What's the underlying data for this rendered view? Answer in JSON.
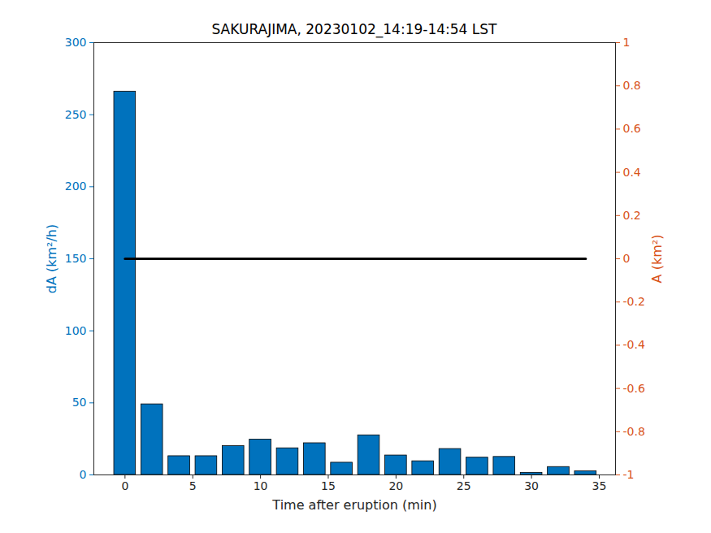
{
  "chart_data": {
    "type": "bar",
    "title": "SAKURAJIMA, 20230102_14:19-14:54 LST",
    "x": [
      0,
      2,
      4,
      6,
      8,
      10,
      12,
      14,
      16,
      18,
      20,
      22,
      24,
      26,
      28,
      30,
      32,
      34
    ],
    "xlabel": "Time after eruption (min)",
    "xlim": [
      -2.3,
      36.2
    ],
    "xticks": [
      0,
      5,
      10,
      15,
      20,
      25,
      30,
      35
    ],
    "ylabel": "dA (km²/h)",
    "ylim": [
      0,
      300
    ],
    "yticks": [
      0,
      50,
      100,
      150,
      200,
      250,
      300
    ],
    "y2label": "A (km²)",
    "y2lim": [
      -1,
      1
    ],
    "y2ticks": [
      -1,
      -0.8,
      -0.6,
      -0.4,
      -0.2,
      0,
      0.2,
      0.4,
      0.6,
      0.8,
      1
    ],
    "series": [
      {
        "type": "bar",
        "color": "#0072BD",
        "values": [
          266,
          49,
          13,
          13,
          20,
          24.5,
          18.5,
          22,
          8.5,
          27.5,
          13.5,
          9.5,
          18,
          12,
          12.5,
          1.5,
          5.5,
          2.5
        ]
      },
      {
        "type": "line",
        "axis": "y2",
        "color": "#000000",
        "values": [
          0,
          0,
          0,
          0,
          0,
          0,
          0,
          0,
          0,
          0,
          0,
          0,
          0,
          0,
          0,
          0,
          0,
          0
        ]
      }
    ]
  }
}
